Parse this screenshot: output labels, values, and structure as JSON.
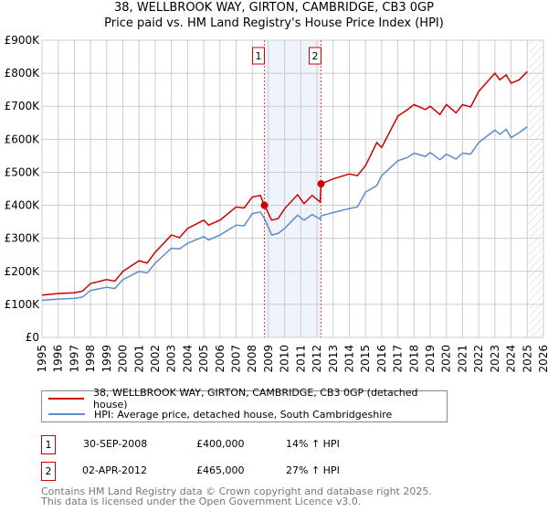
{
  "chart_data": {
    "type": "line",
    "title": "38, WELLBROOK WAY, GIRTON, CAMBRIDGE, CB3 0GP",
    "subtitle": "Price paid vs. HM Land Registry's House Price Index (HPI)",
    "xlim": [
      1995,
      2026
    ],
    "ylim": [
      0,
      900000
    ],
    "x_ticks": [
      "1995",
      "1996",
      "1997",
      "1998",
      "1999",
      "2000",
      "2001",
      "2002",
      "2003",
      "2004",
      "2005",
      "2006",
      "2007",
      "2008",
      "2009",
      "2010",
      "2011",
      "2012",
      "2013",
      "2014",
      "2015",
      "2016",
      "2017",
      "2018",
      "2019",
      "2020",
      "2021",
      "2022",
      "2023",
      "2024",
      "2025",
      "2026"
    ],
    "y_ticks": [
      {
        "v": 0,
        "label": "£0"
      },
      {
        "v": 100000,
        "label": "£100K"
      },
      {
        "v": 200000,
        "label": "£200K"
      },
      {
        "v": 300000,
        "label": "£300K"
      },
      {
        "v": 400000,
        "label": "£400K"
      },
      {
        "v": 500000,
        "label": "£500K"
      },
      {
        "v": 600000,
        "label": "£600K"
      },
      {
        "v": 700000,
        "label": "£700K"
      },
      {
        "v": 800000,
        "label": "£800K"
      },
      {
        "v": 900000,
        "label": "£900K"
      }
    ],
    "grid": true,
    "series": [
      {
        "name": "38, WELLBROOK WAY, GIRTON, CAMBRIDGE, CB3 0GP (detached house)",
        "color": "#cc0000",
        "x": [
          1995,
          1996,
          1997,
          1997.5,
          1998,
          1999,
          1999.5,
          2000,
          2001,
          2001.5,
          2002,
          2003,
          2003.5,
          2004,
          2005,
          2005.3,
          2006,
          2007,
          2007.5,
          2008,
          2008.5,
          2008.75,
          2009.2,
          2009.6,
          2010,
          2010.8,
          2011.2,
          2011.7,
          2012.2,
          2012.25,
          2013,
          2014,
          2014.5,
          2015,
          2015.7,
          2016,
          2017,
          2017.6,
          2018,
          2018.7,
          2019,
          2019.6,
          2020,
          2020.6,
          2021,
          2021.5,
          2022,
          2023,
          2023.3,
          2023.7,
          2024,
          2024.5,
          2025
        ],
        "values": [
          128000,
          133000,
          135000,
          140000,
          163000,
          175000,
          170000,
          200000,
          232000,
          225000,
          258000,
          310000,
          302000,
          330000,
          355000,
          340000,
          355000,
          395000,
          392000,
          425000,
          430000,
          400000,
          355000,
          360000,
          390000,
          432000,
          405000,
          430000,
          410000,
          465000,
          480000,
          495000,
          490000,
          520000,
          590000,
          575000,
          670000,
          690000,
          705000,
          690000,
          700000,
          675000,
          705000,
          680000,
          705000,
          698000,
          745000,
          800000,
          780000,
          795000,
          770000,
          780000,
          805000
        ]
      },
      {
        "name": "HPI: Average price, detached house, South Cambridgeshire",
        "color": "#5b8dd0",
        "x": [
          1995,
          1996,
          1997,
          1997.5,
          1998,
          1999,
          1999.5,
          2000,
          2001,
          2001.5,
          2002,
          2003,
          2003.5,
          2004,
          2005,
          2005.3,
          2006,
          2007,
          2007.5,
          2008,
          2008.5,
          2008.75,
          2009.2,
          2009.6,
          2010,
          2010.8,
          2011.2,
          2011.7,
          2012.2,
          2012.25,
          2013,
          2014,
          2014.5,
          2015,
          2015.7,
          2016,
          2017,
          2017.6,
          2018,
          2018.7,
          2019,
          2019.6,
          2020,
          2020.6,
          2021,
          2021.5,
          2022,
          2023,
          2023.3,
          2023.7,
          2024,
          2024.5,
          2025
        ],
        "values": [
          112000,
          116000,
          118000,
          122000,
          142000,
          152000,
          148000,
          175000,
          200000,
          195000,
          225000,
          270000,
          268000,
          285000,
          305000,
          295000,
          310000,
          340000,
          338000,
          375000,
          380000,
          360000,
          310000,
          315000,
          330000,
          370000,
          355000,
          372000,
          358000,
          368000,
          378000,
          390000,
          395000,
          440000,
          460000,
          490000,
          535000,
          545000,
          558000,
          548000,
          560000,
          538000,
          555000,
          540000,
          558000,
          555000,
          590000,
          628000,
          615000,
          630000,
          605000,
          620000,
          638000
        ]
      }
    ],
    "sales": [
      {
        "id": "1",
        "x": 2008.75,
        "value": 400000,
        "date": "30-SEP-2008",
        "price": "£400,000",
        "hpi": "14% ↑ HPI"
      },
      {
        "id": "2",
        "x": 2012.25,
        "value": 465000,
        "date": "02-APR-2012",
        "price": "£465,000",
        "hpi": "27% ↑ HPI"
      }
    ],
    "forecast_start": 2025.1,
    "legend_position": "below"
  },
  "footer": {
    "line1": "Contains HM Land Registry data © Crown copyright and database right 2025.",
    "line2": "This data is licensed under the Open Government Licence v3.0."
  }
}
